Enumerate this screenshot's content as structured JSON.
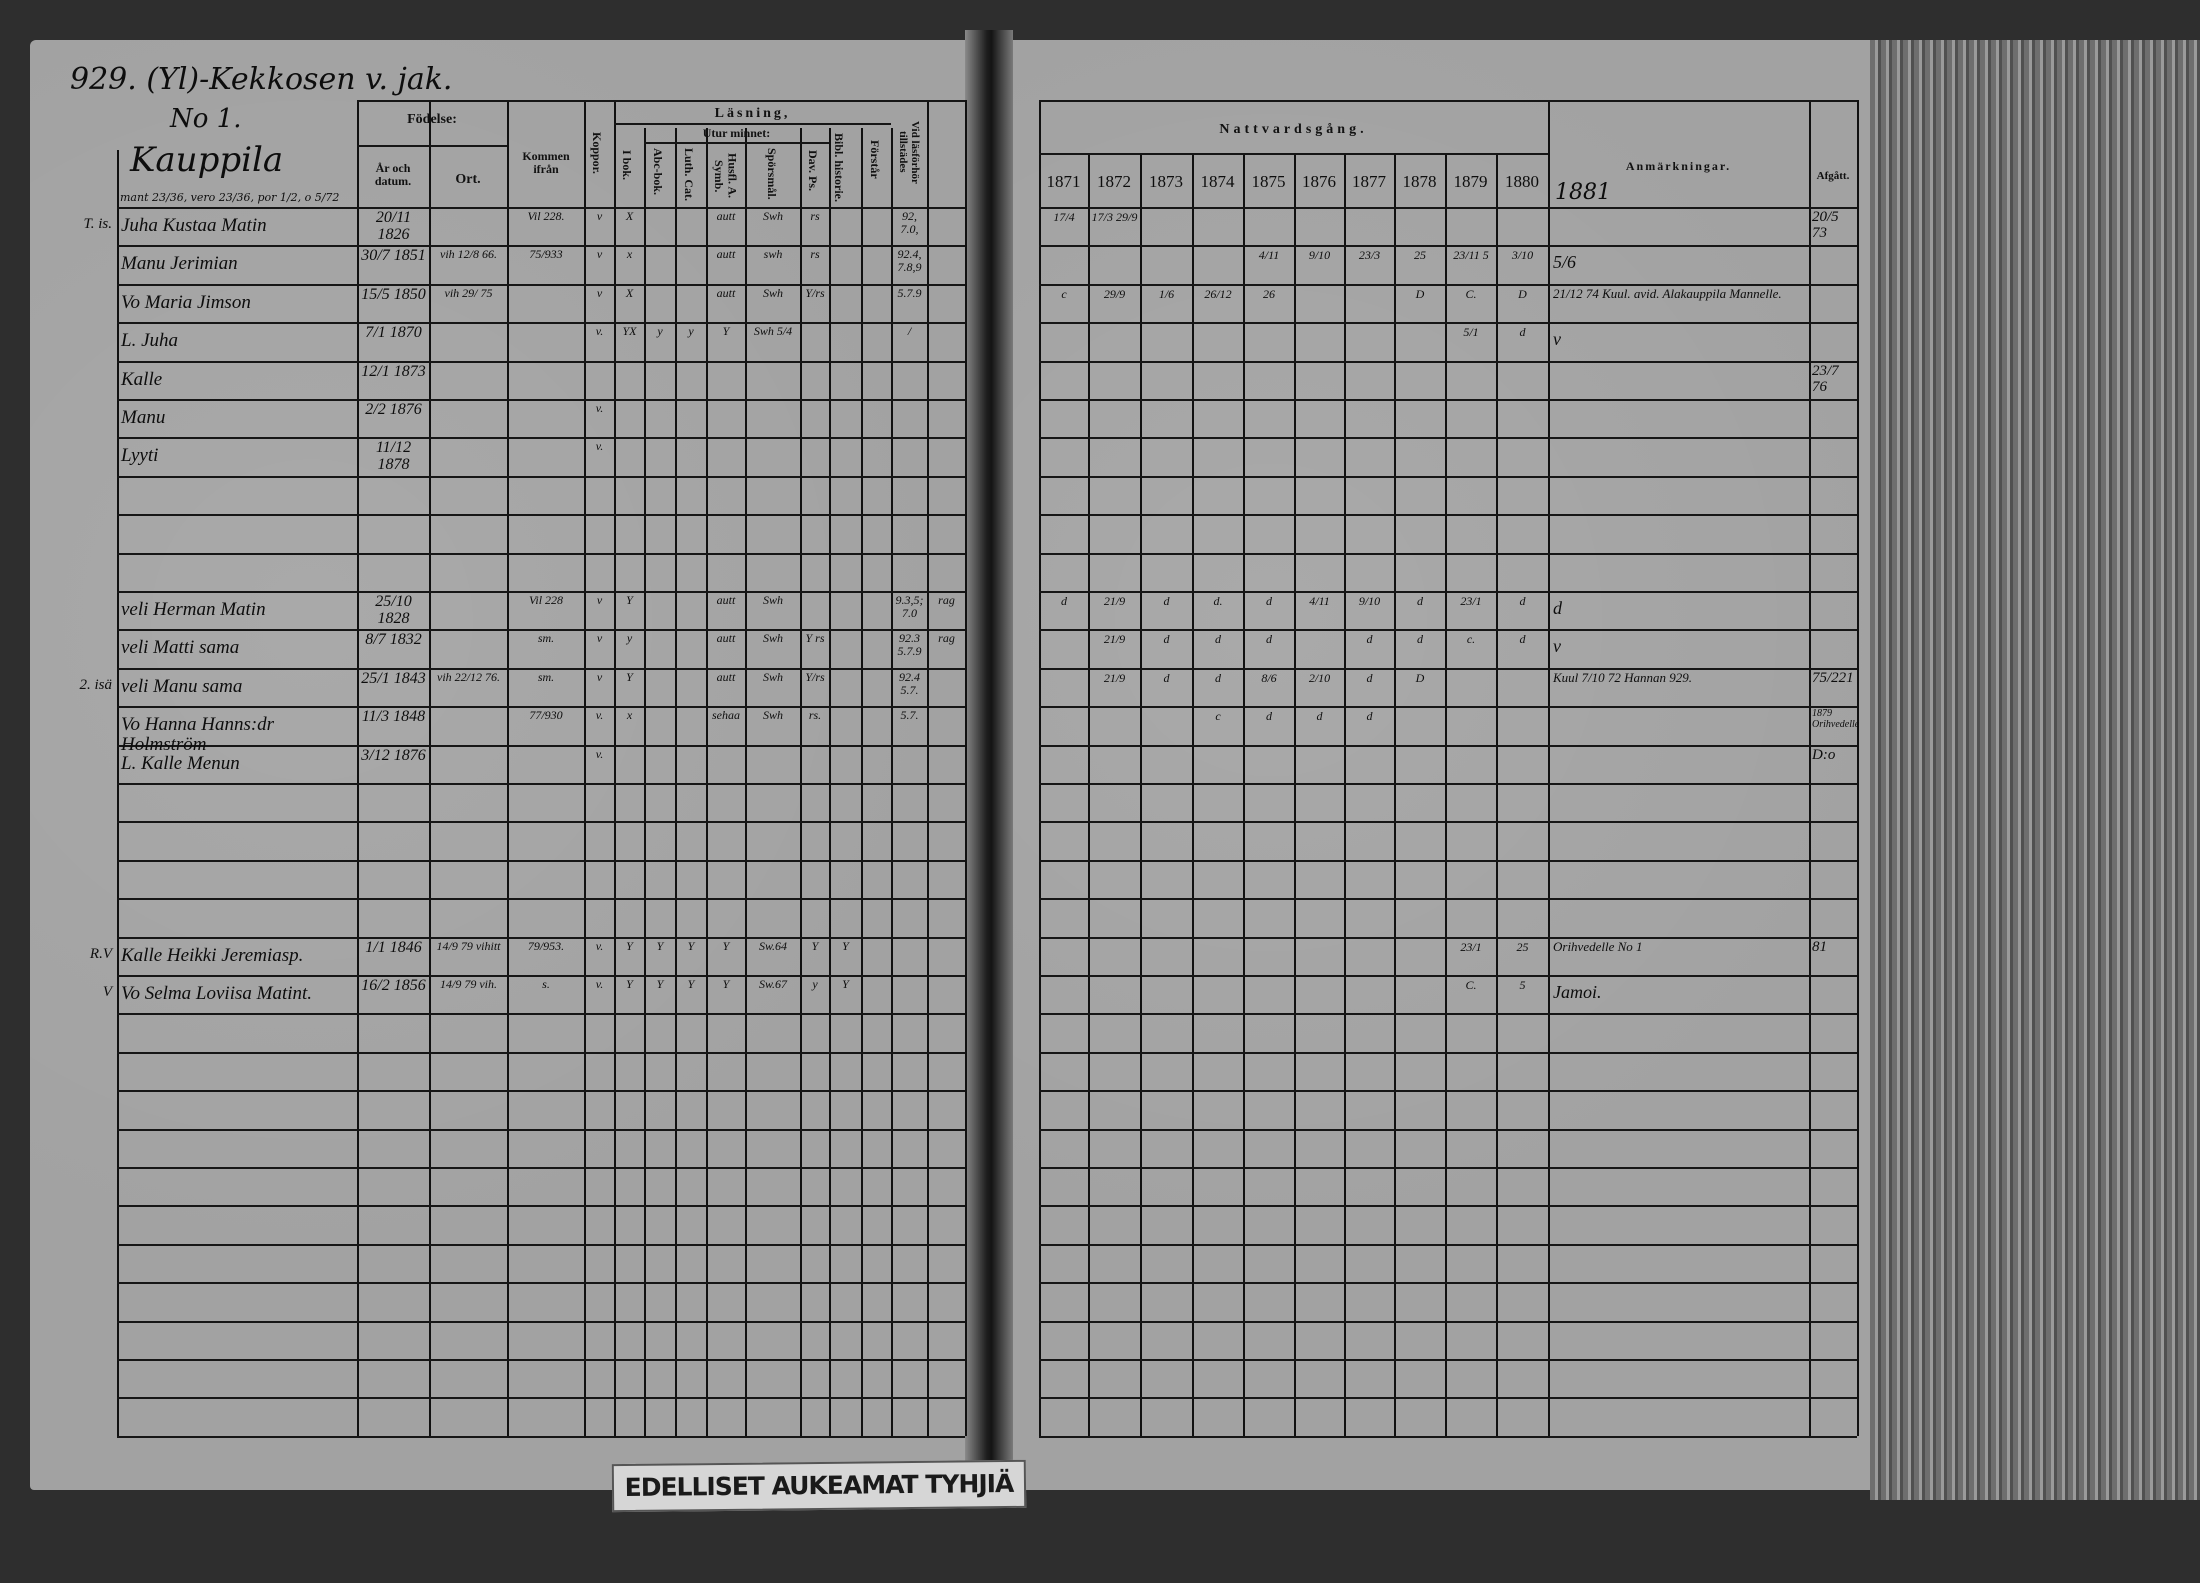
{
  "left_page": {
    "title": "929. (Yl)-Kekkosen v. jak.",
    "number": "No 1.",
    "farm": "Kauppila",
    "tax_note": "mant 23/36, vero 23/36, por 1/2, o 5/72",
    "headers": {
      "fodelse": "Födelse:",
      "ar": "År och datum.",
      "ort": "Ort.",
      "kommen": "Kommen ifrån",
      "koppor": "Koppor.",
      "lasning": "Läsning,",
      "utur_minnet": "Utur minnet:",
      "i_bok": "I bok.",
      "abc_bok": "Abc-bok.",
      "luth_cat": "Luth. Cat.",
      "husfl": "Husfl. A. Symb.",
      "sporsmal": "Spörsmål.",
      "dav_ps": "Dav. Ps.",
      "bibl": "Bibl. historie.",
      "forstar": "Förstår",
      "vid": "Vid läsförhör tillstädes"
    }
  },
  "right_page": {
    "headers": {
      "nattvard": "Nattvardsgång.",
      "years": [
        "1871",
        "1872",
        "1873",
        "1874",
        "1875",
        "1876",
        "1877",
        "1878",
        "1879",
        "1880"
      ],
      "anm": "Anmärkningar.",
      "afgatt": "Afgått.",
      "extra_year": "1881"
    }
  },
  "rows": [
    {
      "row": 0,
      "mark": "T. is.",
      "name": "Juha Kustaa Matin",
      "year": "20/11 1826",
      "kommen": "Vil 228.",
      "koppor": "v",
      "ibok": "X",
      "husfl": "autt",
      "sporsmal": "Swh",
      "dav": "rs",
      "vid": "92, 7.0,",
      "y": {
        "1871": "17/4",
        "1872": "17/3 29/9"
      },
      "afgatt": "20/5 73"
    },
    {
      "row": 1,
      "name": "Manu Jerimian",
      "year": "30/7 1851",
      "ort": "vih 12/8 66.",
      "kommen": "75/933",
      "koppor": "v",
      "ibok": "x",
      "husfl": "autt",
      "sporsmal": "swh",
      "dav": "rs",
      "vid": "92.4, 7.8,9",
      "y": {
        "1875": "4/11",
        "1876": "9/10",
        "1877": "23/3",
        "1878": "25",
        "1879": "23/11 5",
        "1880": "3/10"
      },
      "anm": "5/6"
    },
    {
      "row": 2,
      "name": "Vo Maria Jimson",
      "year": "15/5 1850",
      "ort": "vih 29/ 75",
      "koppor": "v",
      "ibok": "X",
      "husfl": "autt",
      "sporsmal": "Swh",
      "dav": "Y/rs",
      "vid": "5.7.9",
      "y": {
        "1871": "c",
        "1872": "29/9",
        "1873": "1/6",
        "1874": "26/12",
        "1875": "26",
        "1878": "D",
        "1879": "C.",
        "1880": "D"
      },
      "anm": "21/12 74 Kuul. avid. Alakauppila Mannelle."
    },
    {
      "row": 3,
      "name": "L. Juha",
      "year": "7/1 1870",
      "koppor": "v.",
      "ibok": "YX",
      "abc": "y",
      "luth": "y",
      "husfl": "Y",
      "sporsmal": "Swh 5/4",
      "vid": "/",
      "y": {
        "1879": "5/1",
        "1880": "d"
      },
      "anm": "v"
    },
    {
      "row": 4,
      "name": "Kalle",
      "year": "12/1 1873",
      "afgatt": "23/7 76"
    },
    {
      "row": 5,
      "name": "Manu",
      "year": "2/2 1876",
      "koppor": "v."
    },
    {
      "row": 6,
      "name": "Lyyti",
      "year": "11/12 1878",
      "koppor": "v."
    },
    {
      "row": 10,
      "name": "veli Herman Matin",
      "year": "25/10 1828",
      "kommen": "Vil 228",
      "koppor": "v",
      "ibok": "Y",
      "husfl": "autt",
      "sporsmal": "Swh",
      "vid": "9.3,5; 7.0",
      "extra": "rag",
      "y": {
        "1871": "d",
        "1872": "21/9",
        "1873": "d",
        "1874": "d.",
        "1875": "d",
        "1876": "4/11",
        "1877": "9/10",
        "1878": "d",
        "1879": "23/1",
        "1880": "d"
      },
      "anm": "d"
    },
    {
      "row": 11,
      "name": "veli Matti sama",
      "year": "8/7 1832",
      "kommen": "sm.",
      "koppor": "v",
      "ibok": "y",
      "husfl": "autt",
      "sporsmal": "Swh",
      "dav": "Y rs",
      "vid": "92.3 5.7.9",
      "extra": "rag",
      "y": {
        "1872": "21/9",
        "1873": "d",
        "1874": "d",
        "1875": "d",
        "1877": "d",
        "1878": "d",
        "1879": "c.",
        "1880": "d"
      },
      "anm": "v"
    },
    {
      "row": 12,
      "mark": "2. isä",
      "name": "veli Manu sama",
      "year": "25/1 1843",
      "ort": "vih 22/12 76.",
      "kommen": "sm.",
      "koppor": "v",
      "ibok": "Y",
      "husfl": "autt",
      "sporsmal": "Swh",
      "dav": "Y/rs",
      "vid": "92.4 5.7.",
      "y": {
        "1872": "21/9",
        "1873": "d",
        "1874": "d",
        "1875": "8/6",
        "1876": "2/10",
        "1877": "d",
        "1878": "D"
      },
      "anm": "Kuul 7/10 72 Hannan 929.",
      "afgatt": "75/221"
    },
    {
      "row": 13,
      "name": "Vo Hanna Hanns:dr Holmström",
      "year": "11/3 1848",
      "kommen": "77/930",
      "koppor": "v.",
      "ibok": "x",
      "husfl": "sehaa",
      "sporsmal": "Swh",
      "dav": "rs.",
      "vid": "5.7.",
      "y": {
        "1874": "c",
        "1875": "d",
        "1876": "d",
        "1877": "d"
      },
      "afgatt": "1879 Orihvedelle"
    },
    {
      "row": 14,
      "name": "L. Kalle Menun",
      "year": "3/12 1876",
      "koppor": "v.",
      "afgatt": "D:o"
    },
    {
      "row": 19,
      "mark": "R.V",
      "name": "Kalle Heikki Jeremiasp.",
      "year": "1/1 1846",
      "ort": "14/9 79 vihitt",
      "kommen": "79/953.",
      "koppor": "v.",
      "ibok": "Y",
      "abc": "Y",
      "luth": "Y",
      "husfl": "Y",
      "sporsmal": "Sw.64",
      "dav": "Y",
      "bibl": "Y",
      "y": {
        "1879": "23/1",
        "1880": "25"
      },
      "anm": "Orihvedelle No 1",
      "afgatt": "81"
    },
    {
      "row": 20,
      "mark": "V",
      "name": "Vo Selma Loviisa Matint.",
      "year": "16/2 1856",
      "ort": "14/9 79 vih.",
      "kommen": "s.",
      "koppor": "v.",
      "ibok": "Y",
      "abc": "Y",
      "luth": "Y",
      "husfl": "Y",
      "sporsmal": "Sw.67",
      "dav": "y",
      "bibl": "Y",
      "y": {
        "1879": "C.",
        "1880": "5"
      },
      "anm": "Jamoi."
    }
  ],
  "stamp": "EDELLISET AUKEAMAT TYHJIÄ"
}
